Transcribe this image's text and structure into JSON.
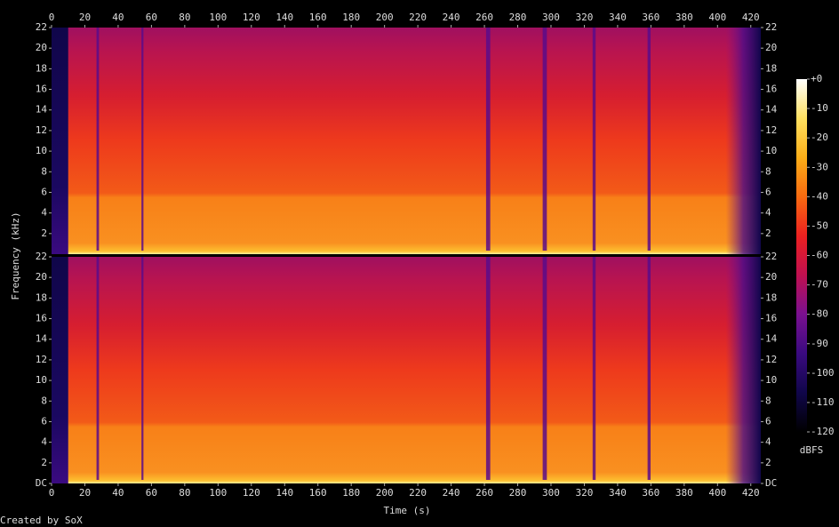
{
  "chart_data": {
    "type": "spectrogram",
    "xlabel": "Time (s)",
    "ylabel": "Frequency (kHz)",
    "xlim": [
      0,
      426
    ],
    "xticks": [
      0,
      20,
      40,
      60,
      80,
      100,
      120,
      140,
      160,
      180,
      200,
      220,
      240,
      260,
      280,
      300,
      320,
      340,
      360,
      380,
      400,
      420
    ],
    "channels": [
      {
        "ylim": [
          0,
          22
        ],
        "yticks": [
          2,
          4,
          6,
          8,
          10,
          12,
          14,
          16,
          18,
          20,
          22
        ]
      },
      {
        "ylim": [
          0,
          22
        ],
        "yticks": [
          {
            "value": 0,
            "label": "DC"
          },
          2,
          4,
          6,
          8,
          10,
          12,
          14,
          16,
          18,
          20,
          22
        ]
      }
    ],
    "colorbar": {
      "label": "dBFS",
      "lim": [
        -120,
        0
      ],
      "ticks": [
        {
          "value": 0,
          "label": "+0"
        },
        -10,
        -20,
        -30,
        -40,
        -50,
        -60,
        -70,
        -80,
        -90,
        -100,
        -110,
        -120
      ],
      "colormap": [
        "#000000",
        "#10064a",
        "#3a0a80",
        "#7a1090",
        "#c01050",
        "#ec2020",
        "#f86a10",
        "#fcae18",
        "#fee060",
        "#ffffff"
      ]
    }
  },
  "footer": "Created by SoX"
}
